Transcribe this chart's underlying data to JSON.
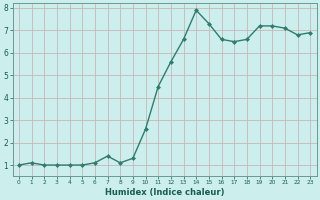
{
  "x": [
    0,
    1,
    2,
    3,
    4,
    5,
    6,
    7,
    8,
    9,
    10,
    11,
    12,
    13,
    14,
    15,
    16,
    17,
    18,
    19,
    20,
    21,
    22,
    23
  ],
  "y": [
    1.0,
    1.1,
    1.0,
    1.0,
    1.0,
    1.0,
    1.1,
    1.4,
    1.1,
    1.3,
    2.6,
    4.5,
    5.6,
    6.6,
    7.9,
    7.3,
    6.6,
    6.5,
    6.6,
    7.2,
    7.2,
    7.1,
    6.8,
    6.9
  ],
  "xlabel": "Humidex (Indice chaleur)",
  "line_color": "#2e7d6e",
  "bg_color": "#cceeed",
  "grid_color": "#c8b8b8",
  "text_color": "#1a5c52",
  "axis_color": "#6a9a94",
  "ylim": [
    0.5,
    8.2
  ],
  "xlim": [
    -0.5,
    23.5
  ],
  "yticks": [
    1,
    2,
    3,
    4,
    5,
    6,
    7,
    8
  ],
  "xticks": [
    0,
    1,
    2,
    3,
    4,
    5,
    6,
    7,
    8,
    9,
    10,
    11,
    12,
    13,
    14,
    15,
    16,
    17,
    18,
    19,
    20,
    21,
    22,
    23
  ],
  "marker": "D",
  "marker_size": 2.0,
  "line_width": 1.0,
  "xlabel_fontsize": 6.0,
  "tick_fontsize_x": 4.2,
  "tick_fontsize_y": 5.5
}
